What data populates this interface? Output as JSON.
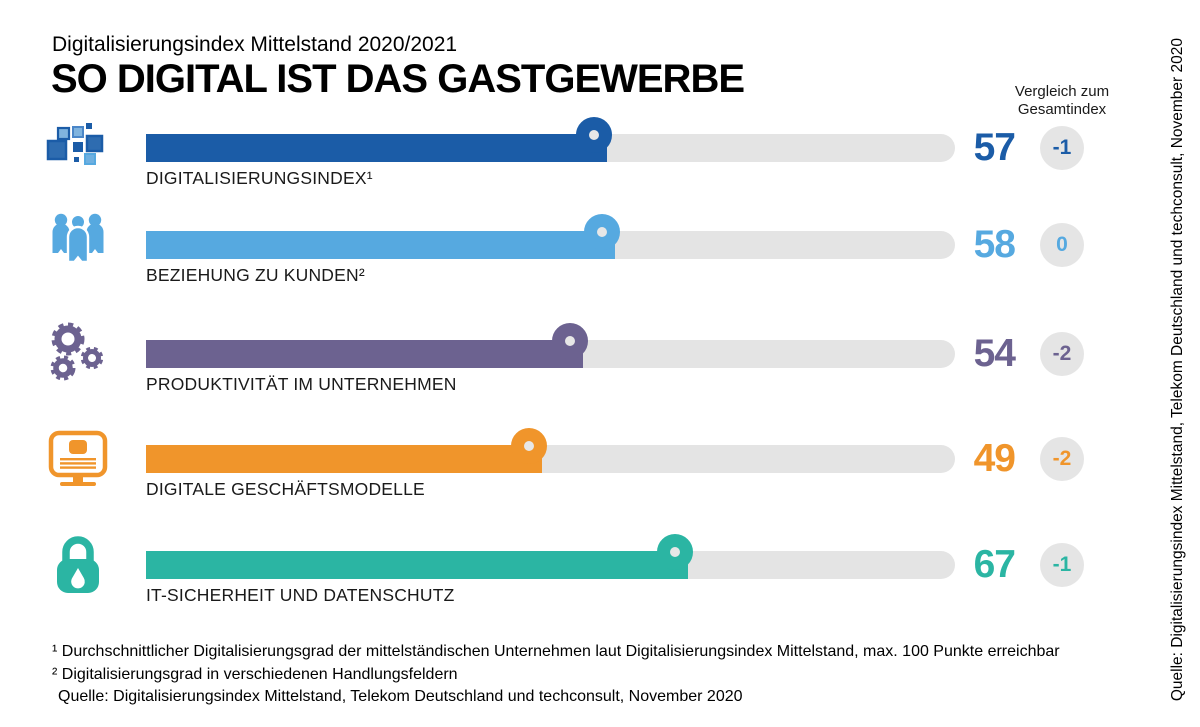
{
  "header": {
    "overline": "Digitalisierungsindex Mittelstand 2020/2021",
    "title": "SO DIGITAL IST DAS GASTGEWERBE",
    "comparison_header_line1": "Vergleich zum",
    "comparison_header_line2": "Gesamtindex"
  },
  "chart_data": {
    "type": "bar",
    "orientation": "horizontal",
    "value_axis_range": [
      0,
      100
    ],
    "grid": false,
    "track_color": "#e4e4e4",
    "badge_bg": "#e5e5e5",
    "rows": [
      {
        "label": "DIGITALISIERUNGSINDEX¹",
        "value": 57,
        "comparison": "-1",
        "color": "#1b5ca7",
        "icon": "pixel-squares-icon"
      },
      {
        "label": "BEZIEHUNG ZU KUNDEN²",
        "value": 58,
        "comparison": "0",
        "color": "#56a9e0",
        "icon": "people-group-icon"
      },
      {
        "label": "PRODUKTIVITÄT IM UNTERNEHMEN",
        "value": 54,
        "comparison": "-2",
        "color": "#6c6290",
        "icon": "gears-icon"
      },
      {
        "label": "DIGITALE GESCHÄFTSMODELLE",
        "value": 49,
        "comparison": "-2",
        "color": "#f0952b",
        "icon": "monitor-icon"
      },
      {
        "label": "IT-SICHERHEIT UND DATENSCHUTZ",
        "value": 67,
        "comparison": "-1",
        "color": "#2bb5a3",
        "icon": "padlock-icon"
      }
    ]
  },
  "footnotes": [
    "¹ Durchschnittlicher Digitalisierungsgrad der mittelständischen Unternehmen laut Digitalisierungsindex Mittelstand, max. 100 Punkte erreichbar",
    "² Digitalisierungsgrad in verschiedenen Handlungsfeldern",
    "Quelle: Digitalisierungsindex Mittelstand, Telekom Deutschland und techconsult, November 2020"
  ],
  "source_vertical": "Quelle: Digitalisierungsindex Mittelstand, Telekom Deutschland und techconsult, November 2020"
}
